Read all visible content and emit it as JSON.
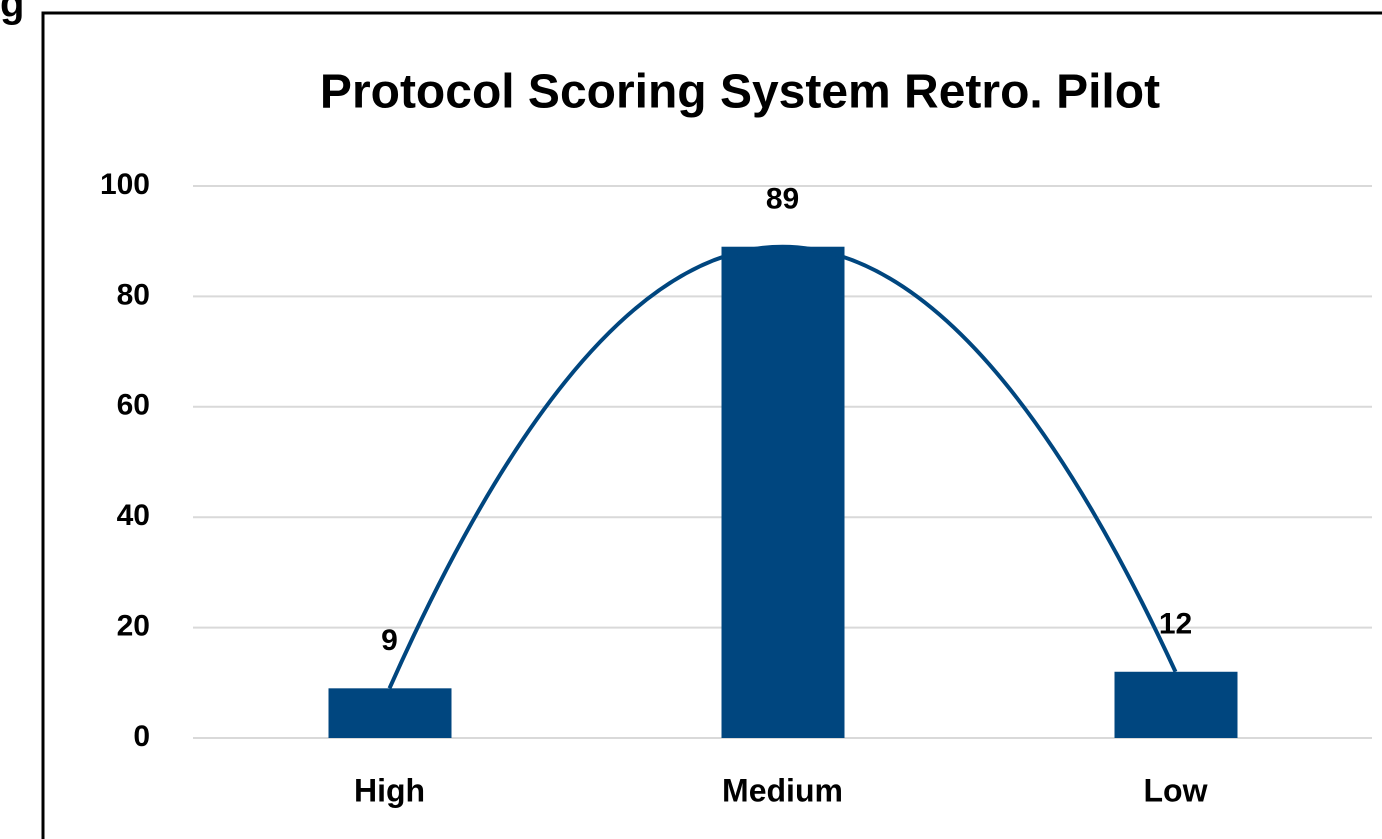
{
  "chart_data": {
    "type": "bar",
    "caption": "g",
    "title": "Protocol Scoring System Retro. Pilot",
    "categories": [
      "High",
      "Medium",
      "Low"
    ],
    "values": [
      9,
      89,
      12
    ],
    "color": "#00467f",
    "smooth_line": true,
    "ylim": [
      0,
      100
    ],
    "yticks": [
      0,
      20,
      40,
      60,
      80,
      100
    ],
    "grid": true
  }
}
